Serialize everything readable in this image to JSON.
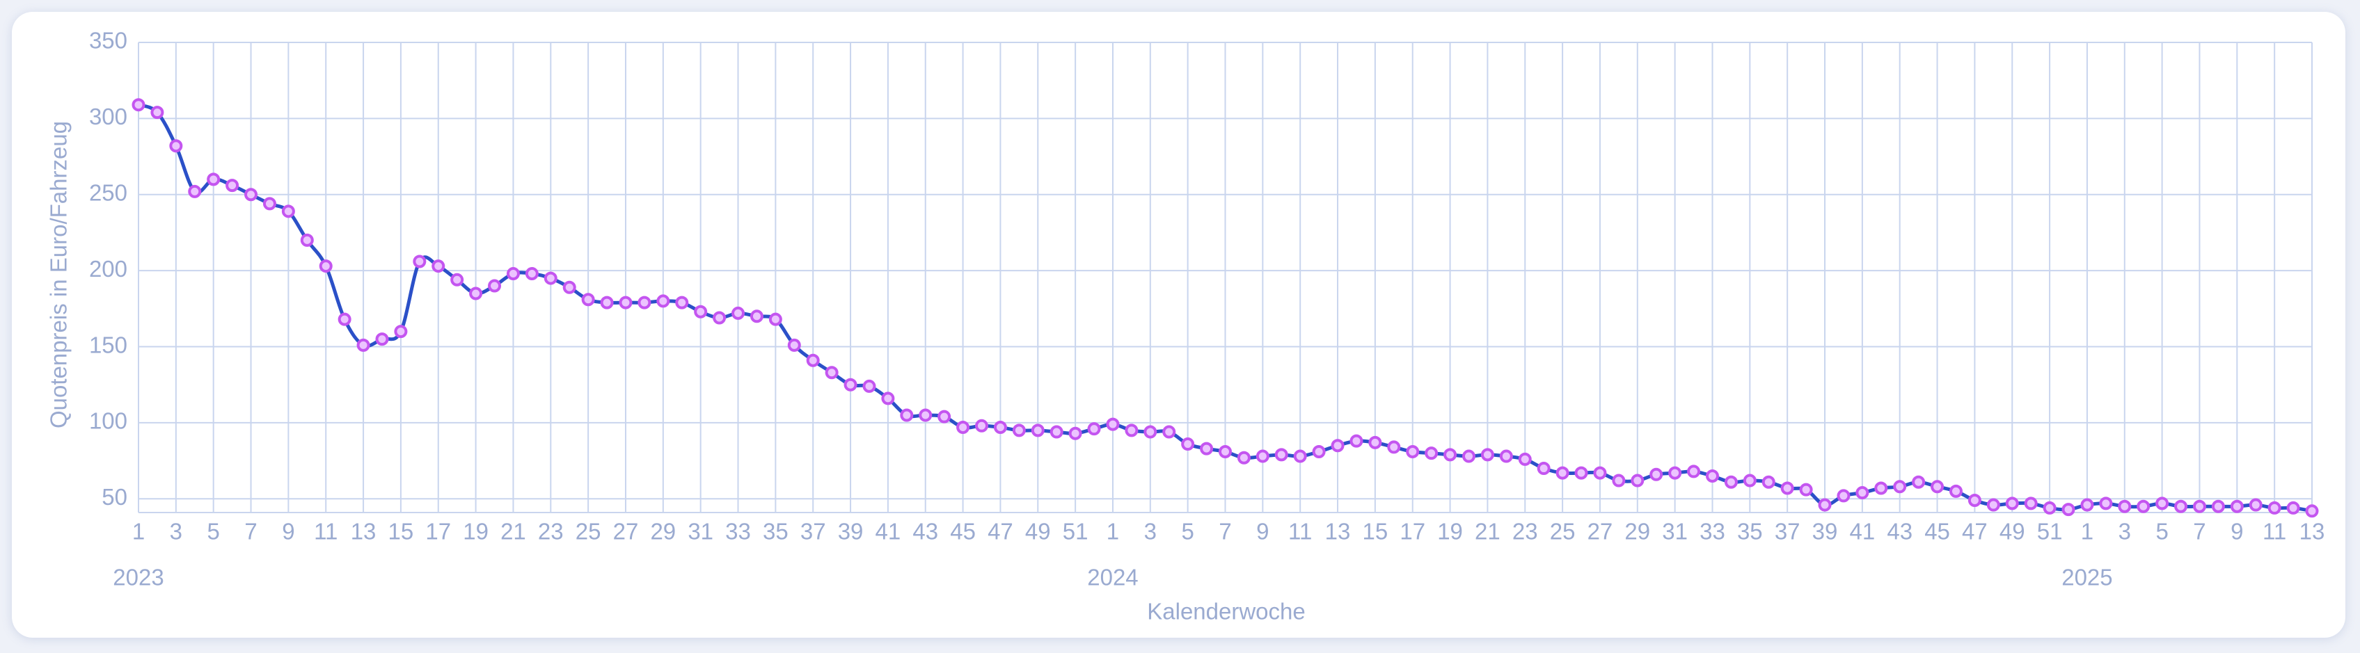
{
  "chart_data": {
    "type": "line",
    "x_label": "Kalenderwoche",
    "y_label": "Quotenpreis in Euro/Fahrzeug",
    "categories": [
      "1",
      null,
      "3",
      null,
      "5",
      null,
      "7",
      null,
      "9",
      null,
      "11",
      null,
      "13",
      null,
      "15",
      null,
      "17",
      null,
      "19",
      null,
      "21",
      null,
      "23",
      null,
      "25",
      null,
      "27",
      null,
      "29",
      null,
      "31",
      null,
      "33",
      null,
      "35",
      null,
      "37",
      null,
      "39",
      null,
      "41",
      null,
      "43",
      null,
      "45",
      null,
      "47",
      null,
      "49",
      null,
      "51",
      null,
      "1",
      null,
      "3",
      null,
      "5",
      null,
      "7",
      null,
      "9",
      null,
      "11",
      null,
      "13",
      null,
      "15",
      null,
      "17",
      null,
      "19",
      null,
      "21",
      null,
      "23",
      null,
      "25",
      null,
      "27",
      null,
      "29",
      null,
      "31",
      null,
      "33",
      null,
      "35",
      null,
      "37",
      null,
      "39",
      null,
      "41",
      null,
      "43",
      null,
      "45",
      null,
      "47",
      null,
      "49",
      null,
      "51",
      null,
      "1",
      null,
      "3",
      null,
      "5",
      null,
      "7",
      null,
      "9",
      null,
      "11",
      null,
      "13"
    ],
    "year_labels": [
      "2023",
      null,
      null,
      null,
      null,
      null,
      null,
      null,
      null,
      null,
      null,
      null,
      null,
      null,
      null,
      null,
      null,
      null,
      null,
      null,
      null,
      null,
      null,
      null,
      null,
      null,
      null,
      null,
      null,
      null,
      null,
      null,
      null,
      null,
      null,
      null,
      null,
      null,
      null,
      null,
      null,
      null,
      null,
      null,
      null,
      null,
      null,
      null,
      null,
      null,
      null,
      null,
      "2024",
      null,
      null,
      null,
      null,
      null,
      null,
      null,
      null,
      null,
      null,
      null,
      null,
      null,
      null,
      null,
      null,
      null,
      null,
      null,
      null,
      null,
      null,
      null,
      null,
      null,
      null,
      null,
      null,
      null,
      null,
      null,
      null,
      null,
      null,
      null,
      null,
      null,
      null,
      null,
      null,
      null,
      null,
      null,
      null,
      null,
      null,
      null,
      null,
      null,
      null,
      null,
      "2025",
      null,
      null,
      null,
      null,
      null,
      null,
      null,
      null,
      null,
      null,
      null,
      null
    ],
    "values": [
      309,
      304,
      282,
      252,
      260,
      256,
      250,
      244,
      239,
      220,
      203,
      168,
      151,
      155,
      160,
      206,
      203,
      194,
      185,
      190,
      198,
      198,
      195,
      189,
      181,
      179,
      179,
      179,
      180,
      179,
      173,
      169,
      172,
      170,
      168,
      151,
      141,
      133,
      125,
      124,
      116,
      105,
      105,
      104,
      97,
      98,
      97,
      95,
      95,
      94,
      93,
      96,
      99,
      95,
      94,
      94,
      86,
      83,
      81,
      77,
      78,
      79,
      78,
      81,
      85,
      88,
      87,
      84,
      81,
      80,
      79,
      78,
      79,
      78,
      76,
      70,
      67,
      67,
      67,
      62,
      62,
      66,
      67,
      68,
      65,
      61,
      62,
      61,
      57,
      56,
      46,
      52,
      54,
      57,
      58,
      61,
      58,
      55,
      49,
      46,
      47,
      47,
      44,
      43,
      46,
      47,
      45,
      45,
      47,
      45,
      45,
      45,
      45,
      46,
      44,
      44,
      42
    ],
    "line_color": "#2b50c8",
    "marker_color": "#c455f0",
    "ylim": [
      41,
      350
    ],
    "yticks": [
      50,
      100,
      150,
      200,
      250,
      300,
      350
    ],
    "grid": true
  }
}
